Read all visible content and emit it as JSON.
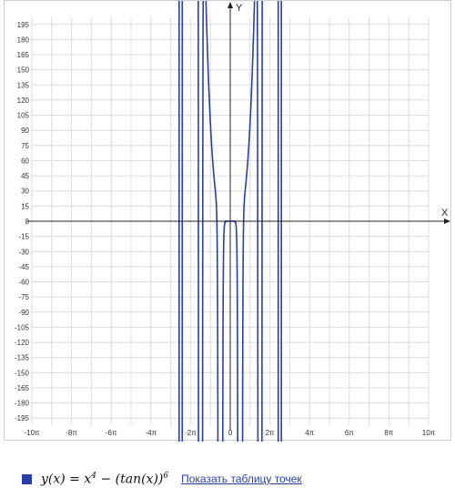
{
  "chart_data": {
    "type": "line",
    "title": "",
    "xlabel": "X",
    "ylabel": "Y",
    "xlim": [
      -31.4159,
      31.4159
    ],
    "ylim": [
      -202,
      202
    ],
    "grid": true,
    "x_ticks": [
      {
        "value": -31.4159,
        "label": "-10π"
      },
      {
        "value": -25.1327,
        "label": "-8π"
      },
      {
        "value": -18.8496,
        "label": "-6π"
      },
      {
        "value": -12.5664,
        "label": "-4π"
      },
      {
        "value": -6.2832,
        "label": "-2π"
      },
      {
        "value": 0,
        "label": "0"
      },
      {
        "value": 6.2832,
        "label": "2π"
      },
      {
        "value": 12.5664,
        "label": "4π"
      },
      {
        "value": 18.8496,
        "label": "6π"
      },
      {
        "value": 25.1327,
        "label": "8π"
      },
      {
        "value": 31.4159,
        "label": "10π"
      }
    ],
    "y_ticks": [
      195,
      180,
      165,
      150,
      135,
      120,
      105,
      90,
      75,
      60,
      45,
      30,
      15,
      0,
      -15,
      -30,
      -45,
      -60,
      -75,
      -90,
      -105,
      -120,
      -135,
      -150,
      -165,
      -180,
      -195
    ],
    "series": [
      {
        "name": "",
        "color": "#2a3ea8",
        "function": "x^4 - tan(x)^6"
      }
    ],
    "x_domain": [
      -8.5,
      8.5
    ]
  },
  "legend": {
    "formula_prefix": "y(x) = x",
    "formula_exp1": "4",
    "formula_mid": " − (tan(x))",
    "formula_exp2": "6",
    "link_label": "Показать таблицу точек",
    "swatch_color": "#2a3ea8"
  }
}
